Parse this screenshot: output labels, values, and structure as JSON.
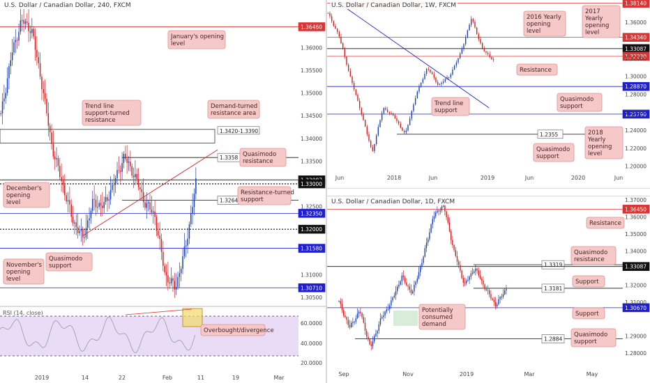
{
  "panels": {
    "left": {
      "title": "U.S. Dollar / Canadian Dollar, 240, FXCM",
      "levels": [
        {
          "value": 1.3646,
          "label": "1.36460",
          "style": "red"
        },
        {
          "value": 1.3358,
          "label": "1.3358",
          "style": "box"
        },
        {
          "value": 1.33087,
          "label": "1.33087",
          "style": "dark"
        },
        {
          "value": 1.33,
          "label": "1.33000",
          "style": "black",
          "dotted": true
        },
        {
          "value": 1.3264,
          "label": "1.3264",
          "style": "box"
        },
        {
          "value": 1.3235,
          "label": "1.32350",
          "style": "blue"
        },
        {
          "value": 1.32,
          "label": "1.32000",
          "style": "black",
          "dotted": true
        },
        {
          "value": 1.3158,
          "label": "1.31580",
          "style": "blue"
        },
        {
          "value": 1.3071,
          "label": "1.30710",
          "style": "blue"
        }
      ],
      "zone": {
        "top": 1.342,
        "bottom": 1.339,
        "label": "1.3420-1.3390"
      },
      "axis_ticks": [
        "1.36000",
        "1.35500",
        "1.35000",
        "1.34500",
        "1.34000",
        "1.33500",
        "1.32500",
        "1.31000",
        "1.30500"
      ],
      "x_ticks": [
        "2019",
        "14",
        "22",
        "Feb",
        "11",
        "19",
        "Mar"
      ],
      "annotations": {
        "january": "January's opening level",
        "trendline": "Trend line support-turned resistance",
        "demand": "Demand-turned resistance area",
        "quasimodo_res": "Quasimodo resistance",
        "december": "December's opening level",
        "res_support": "Resistance-turned support",
        "november": "November's opening level",
        "quasimodo_sup": "Quasimodo support",
        "overbought": "Overbought/divergence"
      },
      "rsi": {
        "label": "RSI (14, close)",
        "ticks": [
          "60.0000",
          "40.0000",
          "20.0000"
        ]
      }
    },
    "weekly": {
      "title": "U.S. Dollar / Canadian Dollar, 1W, FXCM",
      "levels": [
        {
          "value": 1.3814,
          "label": "1.38140",
          "style": "red"
        },
        {
          "value": 1.3434,
          "label": "1.34340",
          "style": "red"
        },
        {
          "value": 1.33087,
          "label": "1.33087",
          "style": "dark"
        },
        {
          "value": 1.3223,
          "label": "1.32230",
          "style": "red"
        },
        {
          "value": 1.2887,
          "label": "1.28870",
          "style": "blue"
        },
        {
          "value": 1.2579,
          "label": "1.25790",
          "style": "blue"
        },
        {
          "value": 1.2355,
          "label": "1.2355",
          "style": "box"
        }
      ],
      "axis_ticks": [
        "1.36000",
        "1.32000",
        "1.30000",
        "1.28000",
        "1.26000",
        "1.24000",
        "1.22000",
        "1.20000"
      ],
      "x_ticks": [
        "Jun",
        "2018",
        "Jun",
        "2019",
        "Jun",
        "2020",
        "Jun"
      ],
      "annotations": {
        "yearly2016": "2016 Yearly opening level",
        "yearly2017": "2017 Yearly opening level",
        "resistance": "Resistance",
        "trendline": "Trend line support",
        "quasimodo1": "Quasimodo support",
        "yearly2018": "2018 Yearly opening level",
        "quasimodo2": "Quasimodo support"
      }
    },
    "daily": {
      "title": "U.S. Dollar / Canadian Dollar, 1D, FXCM",
      "levels": [
        {
          "value": 1.3645,
          "label": "1.36450",
          "style": "red"
        },
        {
          "value": 1.3319,
          "label": "1.3319",
          "style": "box"
        },
        {
          "value": 1.33087,
          "label": "1.33087",
          "style": "dark"
        },
        {
          "value": 1.3181,
          "label": "1.3181",
          "style": "box"
        },
        {
          "value": 1.3067,
          "label": "1.30670",
          "style": "blue"
        },
        {
          "value": 1.2884,
          "label": "1.2884",
          "style": "box"
        }
      ],
      "axis_ticks": [
        "1.37000",
        "1.36000",
        "1.35000",
        "1.34000",
        "1.32000",
        "1.31000",
        "1.29000",
        "1.28000"
      ],
      "x_ticks": [
        "Sep",
        "Nov",
        "2019",
        "Mar",
        "May"
      ],
      "annotations": {
        "resistance": "Resistance",
        "quasimodo_res": "Quasimodo resistance",
        "support1": "Support",
        "consumed": "Potentially consumed demand",
        "support2": "Support",
        "quasimodo_sup": "Quasimodo support"
      }
    }
  },
  "colors": {
    "bull": "#1f3fb0",
    "bear": "#cc1f1f",
    "red_level": "#d83535",
    "blue_level": "#1f1fd0",
    "annotation_fill": "#f6c9c9",
    "annotation_border": "#e09090",
    "rsi_fill": "#eadcf7"
  }
}
